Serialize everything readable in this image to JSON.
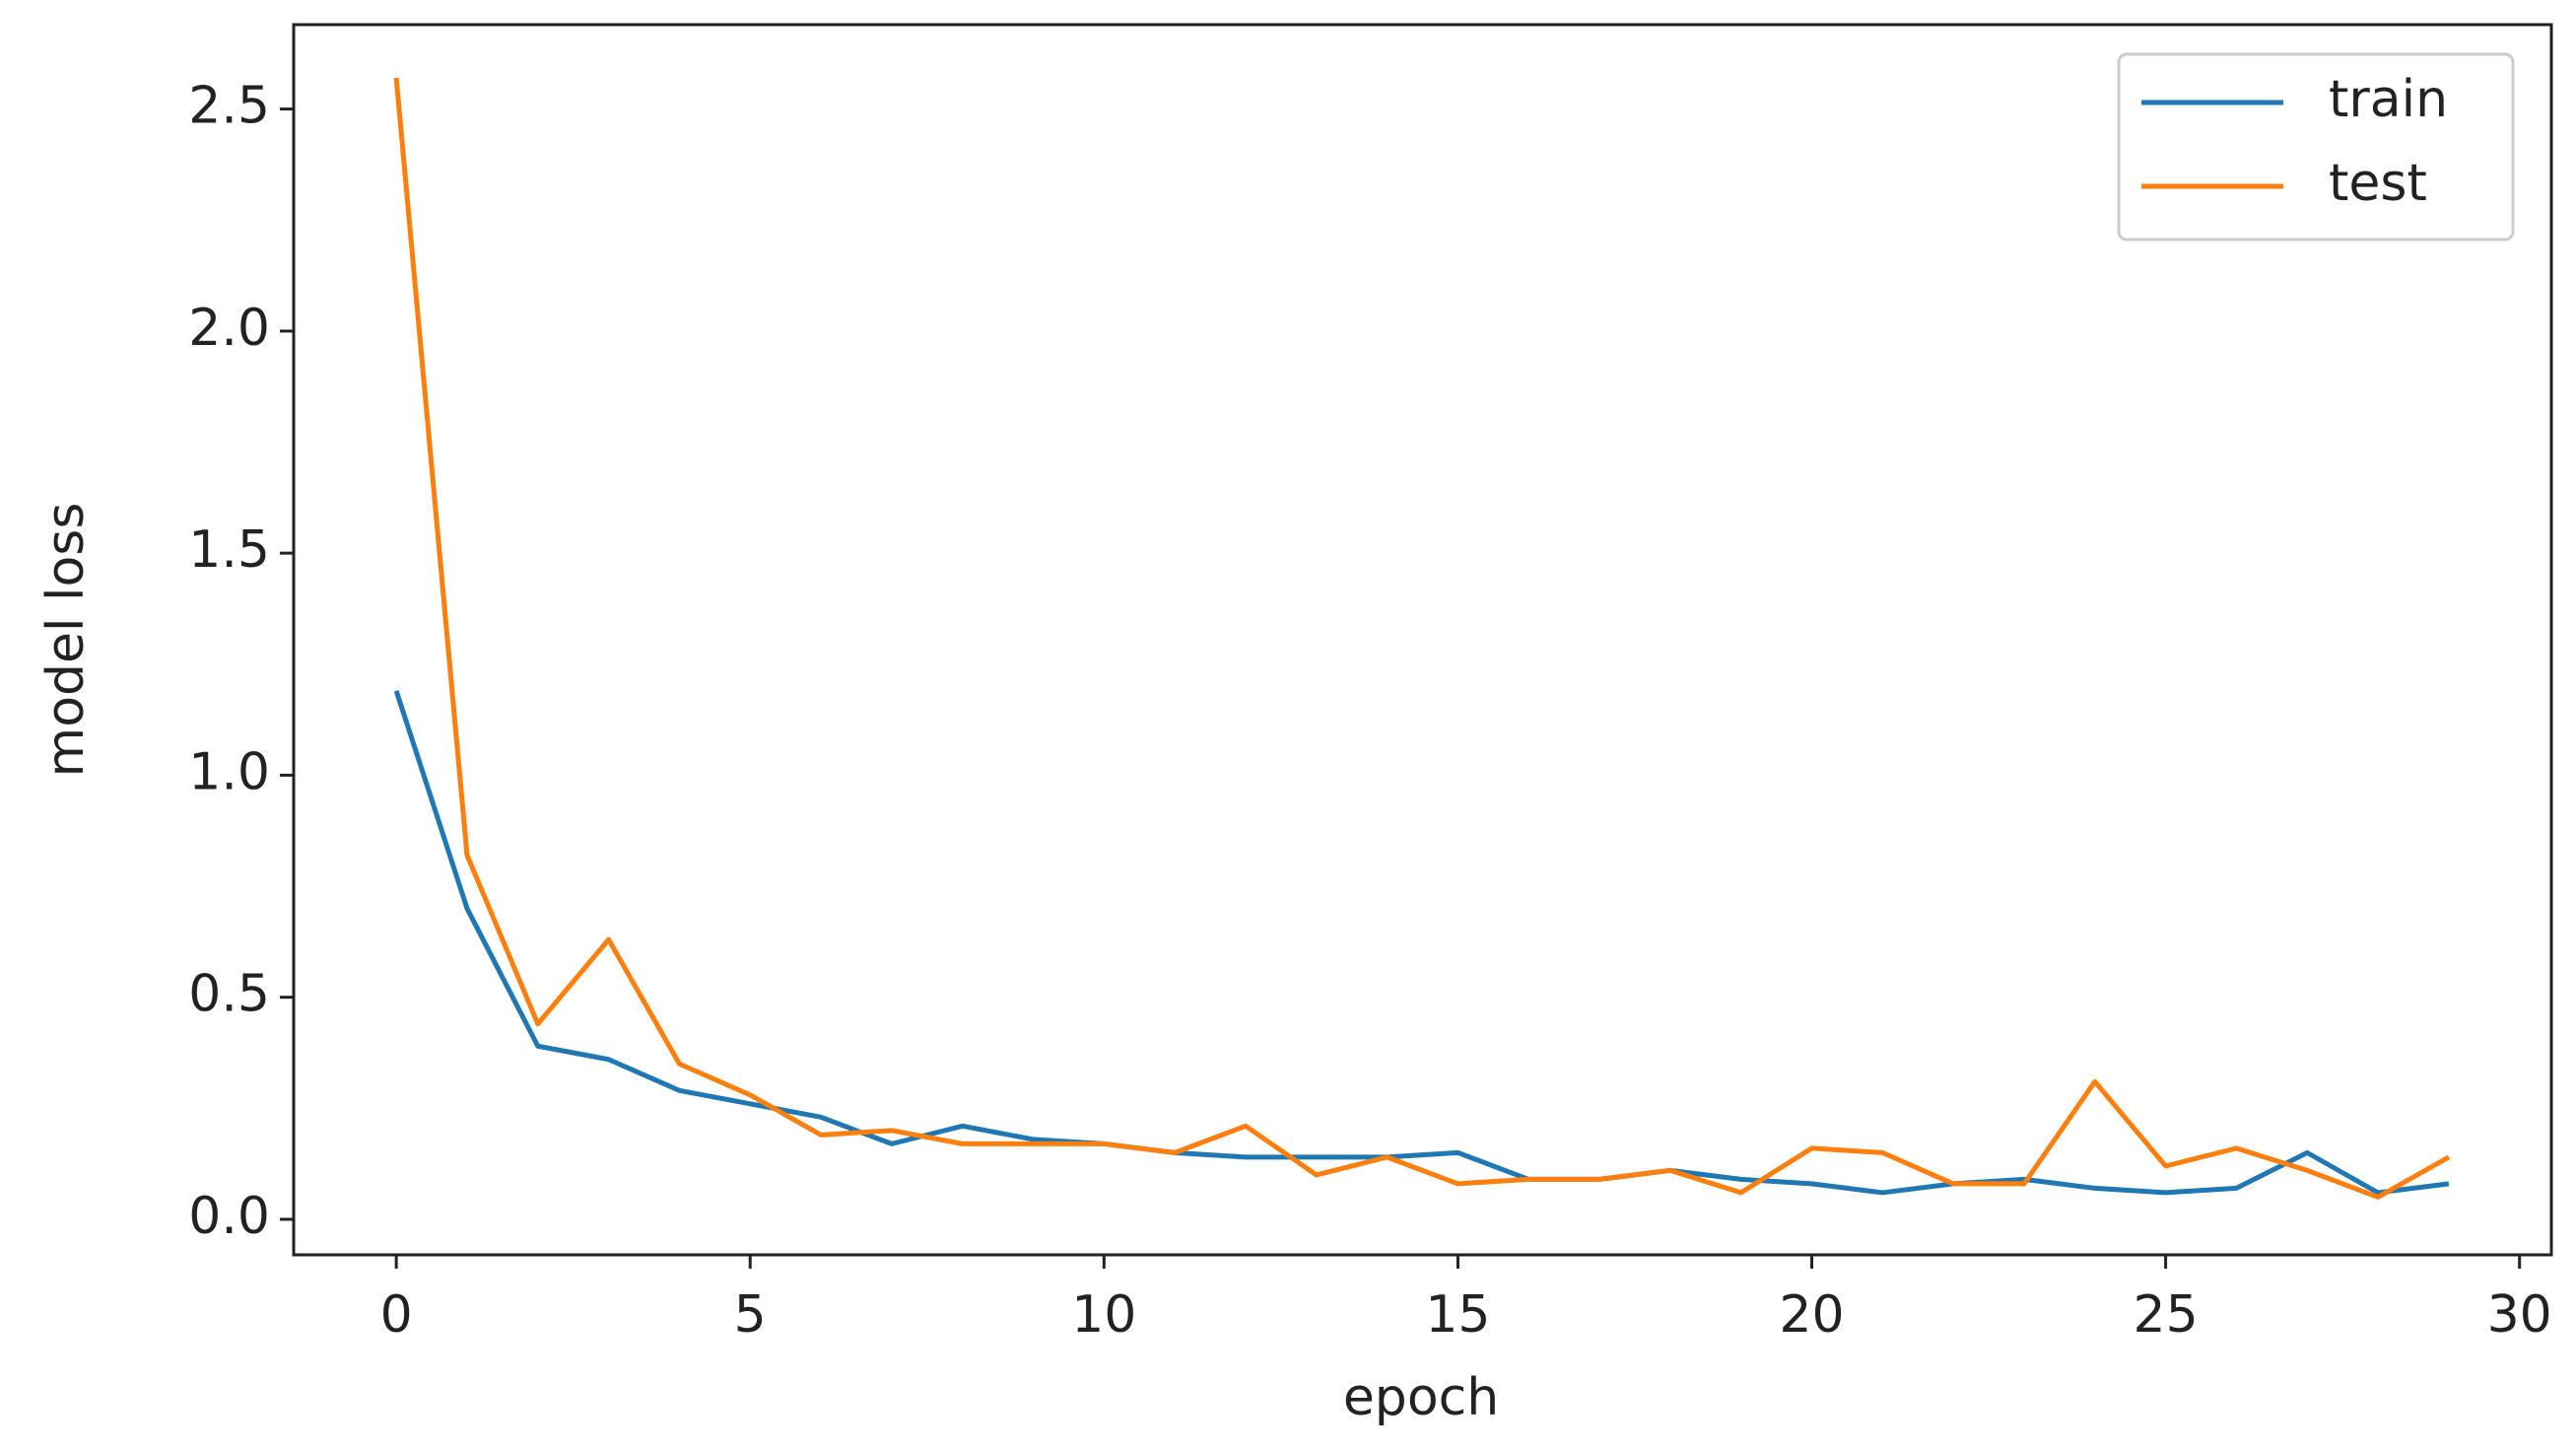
{
  "chart_data": {
    "type": "line",
    "xlabel": "epoch",
    "ylabel": "model loss",
    "x": [
      0,
      1,
      2,
      3,
      4,
      5,
      6,
      7,
      8,
      9,
      10,
      11,
      12,
      13,
      14,
      15,
      16,
      17,
      18,
      19,
      20,
      21,
      22,
      23,
      24,
      25,
      26,
      27,
      28,
      29
    ],
    "series": [
      {
        "name": "train",
        "color": "#1f77b4",
        "values": [
          1.19,
          0.7,
          0.39,
          0.36,
          0.29,
          0.26,
          0.23,
          0.17,
          0.21,
          0.18,
          0.17,
          0.15,
          0.14,
          0.14,
          0.14,
          0.15,
          0.09,
          0.09,
          0.11,
          0.09,
          0.08,
          0.06,
          0.08,
          0.09,
          0.07,
          0.06,
          0.07,
          0.15,
          0.06,
          0.08
        ]
      },
      {
        "name": "test",
        "color": "#ff7f0e",
        "values": [
          2.57,
          0.82,
          0.44,
          0.63,
          0.35,
          0.28,
          0.19,
          0.2,
          0.17,
          0.17,
          0.17,
          0.15,
          0.21,
          0.1,
          0.14,
          0.08,
          0.09,
          0.09,
          0.11,
          0.06,
          0.16,
          0.15,
          0.08,
          0.08,
          0.31,
          0.12,
          0.16,
          0.11,
          0.05,
          0.14
        ]
      }
    ],
    "xlim": [
      -1.45,
      30.45
    ],
    "ylim": [
      -0.08,
      2.69
    ],
    "xticks": [
      0,
      5,
      10,
      15,
      20,
      25,
      30
    ],
    "yticks": [
      {
        "value": 0,
        "label": "0.0"
      },
      0.5,
      {
        "value": 1,
        "label": "1.0"
      },
      1.5,
      {
        "value": 2,
        "label": "2.0"
      },
      2.5
    ],
    "legend": "upper right"
  }
}
